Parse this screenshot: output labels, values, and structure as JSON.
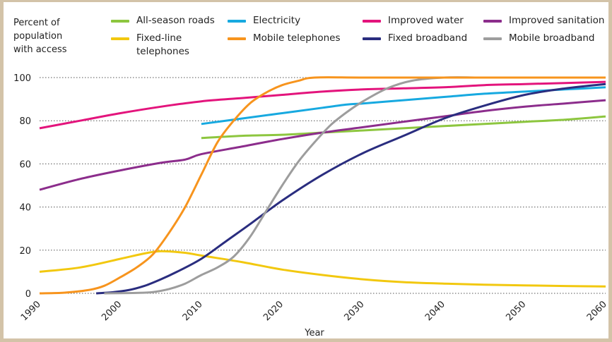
{
  "chart_data": {
    "type": "line",
    "title": "",
    "ylabel_lines": [
      "Percent of",
      "population",
      "with access"
    ],
    "xlabel": "Year",
    "xlim": [
      1990,
      2060
    ],
    "ylim": [
      0,
      100
    ],
    "x_ticks": [
      1990,
      2000,
      2010,
      2020,
      2030,
      2040,
      2050,
      2060
    ],
    "y_ticks": [
      0,
      20,
      40,
      60,
      80,
      100
    ],
    "grid": "horizontal dotted",
    "legend_position": "top",
    "series": [
      {
        "name": "All-season roads",
        "color": "#8dc63f",
        "x": [
          2010,
          2015,
          2020,
          2025,
          2030,
          2035,
          2040,
          2045,
          2050,
          2055,
          2060
        ],
        "y": [
          72,
          73,
          73.5,
          74.5,
          75.5,
          76.5,
          77.5,
          78.5,
          79.5,
          80.5,
          82
        ]
      },
      {
        "name": "Electricity",
        "color": "#17a9e0",
        "x": [
          2010,
          2015,
          2020,
          2025,
          2028,
          2030,
          2035,
          2040,
          2045,
          2050,
          2055,
          2060
        ],
        "y": [
          78.5,
          81,
          83.5,
          86,
          87.5,
          88,
          89.5,
          91,
          92.5,
          93.5,
          94.5,
          95.5
        ]
      },
      {
        "name": "Improved water",
        "color": "#e3147c",
        "x": [
          1990,
          1995,
          2000,
          2005,
          2010,
          2015,
          2020,
          2025,
          2030,
          2035,
          2040,
          2045,
          2050,
          2055,
          2060
        ],
        "y": [
          76.5,
          80,
          83.5,
          86.5,
          89,
          90.5,
          92,
          93.5,
          94.5,
          95,
          95.5,
          96.5,
          97,
          97.5,
          98
        ]
      },
      {
        "name": "Improved sanitation",
        "color": "#8c2d8c",
        "x": [
          1990,
          1995,
          2000,
          2005,
          2008,
          2010,
          2015,
          2020,
          2025,
          2030,
          2035,
          2040,
          2045,
          2050,
          2055,
          2060
        ],
        "y": [
          48,
          53,
          57,
          60.5,
          62,
          64.5,
          68,
          71.5,
          74.5,
          77,
          79.5,
          82,
          84.5,
          86.5,
          88,
          89.5
        ]
      },
      {
        "name": "Fixed-line telephones",
        "color": "#f2c80f",
        "x": [
          1990,
          1995,
          2000,
          2003,
          2005,
          2008,
          2010,
          2015,
          2020,
          2025,
          2030,
          2035,
          2040,
          2045,
          2050,
          2055,
          2060
        ],
        "y": [
          10,
          12,
          16,
          18.5,
          19.5,
          18.8,
          17.5,
          14.5,
          11,
          8.5,
          6.5,
          5.2,
          4.5,
          4,
          3.7,
          3.4,
          3.2
        ]
      },
      {
        "name": "Mobile telephones",
        "color": "#f7941d",
        "x": [
          1990,
          1993,
          1996,
          1998,
          2000,
          2002,
          2004,
          2006,
          2008,
          2010,
          2012,
          2014,
          2016,
          2018,
          2020,
          2022,
          2024,
          2030,
          2040,
          2050,
          2060
        ],
        "y": [
          0,
          0.3,
          1.5,
          3.5,
          7.5,
          12,
          18,
          28,
          40,
          55,
          70,
          80,
          88,
          93,
          96.5,
          98.5,
          100,
          100,
          100,
          100,
          100
        ]
      },
      {
        "name": "Fixed broadband",
        "color": "#2a2d7f",
        "x": [
          1997,
          1999,
          2001,
          2003,
          2005,
          2007,
          2010,
          2013,
          2016,
          2020,
          2025,
          2030,
          2035,
          2040,
          2045,
          2050,
          2055,
          2060
        ],
        "y": [
          0,
          0.5,
          1.5,
          3.5,
          6.5,
          10,
          16,
          24,
          32,
          43,
          55,
          65,
          73,
          81,
          87,
          92,
          95,
          97
        ]
      },
      {
        "name": "Mobile broadband",
        "color": "#9d9d9d",
        "x": [
          1998,
          2002,
          2004,
          2006,
          2008,
          2010,
          2012,
          2014,
          2016,
          2018,
          2020,
          2022,
          2024,
          2026,
          2028,
          2030,
          2033,
          2036,
          2040,
          2045,
          2050,
          2060
        ],
        "y": [
          0,
          0.2,
          0.6,
          2,
          4.5,
          8.5,
          12,
          17,
          26,
          38,
          50,
          61,
          70,
          78,
          84,
          89,
          95,
          98.5,
          100,
          100,
          100,
          100
        ]
      }
    ]
  }
}
